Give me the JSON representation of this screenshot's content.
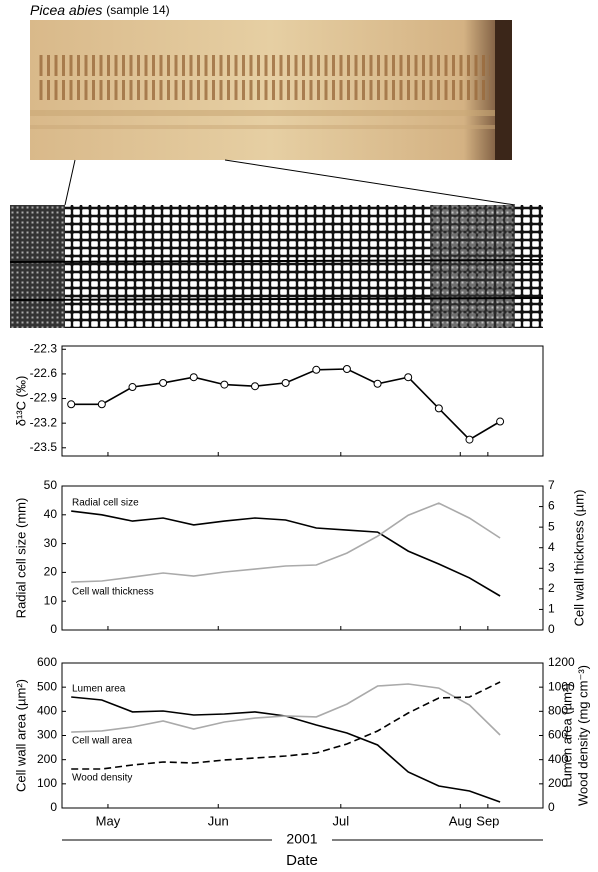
{
  "figure": {
    "species": "Picea abies",
    "sample": "(sample 14)",
    "year": "2001",
    "xlabel": "Date"
  },
  "chart_data": [
    {
      "type": "line",
      "ylabel": "δ¹³C (‰)",
      "marker": "circle",
      "x": [
        1,
        2,
        3,
        4,
        5,
        6,
        7,
        8,
        9,
        10,
        11,
        12,
        13,
        14,
        15
      ],
      "xlim": [
        0.7,
        16.4
      ],
      "ylim": [
        -23.6,
        -22.26
      ],
      "yticks": [
        -22.3,
        -22.6,
        -22.9,
        -23.2,
        -23.5
      ],
      "series": [
        {
          "name": null,
          "color": "#000000",
          "values": [
            -22.97,
            -22.97,
            -22.76,
            -22.71,
            -22.64,
            -22.73,
            -22.75,
            -22.71,
            -22.55,
            -22.54,
            -22.72,
            -22.64,
            -23.02,
            -23.4,
            -23.18
          ]
        }
      ]
    },
    {
      "type": "line",
      "ylabel": "Radial cell size (mm)",
      "y2label": "Cell wall thickness (µm)",
      "x": [
        1,
        2,
        3,
        4,
        5,
        6,
        7,
        8,
        9,
        10,
        11,
        12,
        13,
        14,
        15
      ],
      "xlim": [
        0.7,
        16.4
      ],
      "ylim": [
        0,
        50
      ],
      "yticks": [
        0,
        10,
        20,
        30,
        40,
        50
      ],
      "y2lim": [
        0,
        7
      ],
      "y2ticks": [
        0,
        1,
        2,
        3,
        4,
        5,
        6,
        7
      ],
      "series": [
        {
          "name": "Radial cell size",
          "color": "#000000",
          "values": [
            41.3,
            40,
            37.8,
            38.9,
            36.5,
            37.8,
            38.9,
            38.2,
            35.4,
            34.7,
            34,
            27.4,
            22.9,
            18.1,
            11.8
          ]
        },
        {
          "name": "Cell wall thickness",
          "color": "#aaaaaa",
          "axis": "y2",
          "values": [
            2.33,
            2.38,
            2.57,
            2.77,
            2.62,
            2.82,
            2.96,
            3.11,
            3.16,
            3.74,
            4.56,
            5.58,
            6.17,
            5.44,
            4.47
          ]
        }
      ]
    },
    {
      "type": "line",
      "ylabel": "Cell wall area (µm²)",
      "y2label": [
        "Lumen area (µm²)",
        "Wood density (mg cm⁻³)"
      ],
      "x": [
        1,
        2,
        3,
        4,
        5,
        6,
        7,
        8,
        9,
        10,
        11,
        12,
        13,
        14,
        15
      ],
      "xlim": [
        0.7,
        16.4
      ],
      "xticks": [
        {
          "value": 2.2,
          "label": "May"
        },
        {
          "value": 5.8,
          "label": "Jun"
        },
        {
          "value": 9.8,
          "label": "Jul"
        },
        {
          "value": 13.7,
          "label": "Aug"
        },
        {
          "value": 14.6,
          "label": "Sep"
        }
      ],
      "ylim": [
        0,
        600
      ],
      "yticks": [
        0,
        100,
        200,
        300,
        400,
        500,
        600
      ],
      "y2lim": [
        0,
        1200
      ],
      "y2ticks": [
        0,
        200,
        400,
        600,
        800,
        1000,
        1200
      ],
      "series": [
        {
          "name": "Lumen area",
          "color": "#000000",
          "axis": "y2",
          "values": [
            919,
            894,
            795,
            803,
            770,
            778,
            795,
            761,
            687,
            621,
            521,
            298,
            182,
            141,
            50
          ]
        },
        {
          "name": "Cell wall area",
          "color": "#aaaaaa",
          "values": [
            314,
            319,
            335,
            360,
            327,
            356,
            372,
            381,
            377,
            430,
            505,
            513,
            496,
            426,
            302
          ]
        },
        {
          "name": "Wood density",
          "color": "#000000",
          "axis": "y2",
          "style": "dashed",
          "values": [
            323,
            323,
            356,
            381,
            372,
            397,
            414,
            430,
            455,
            530,
            637,
            786,
            910,
            919,
            1043
          ]
        }
      ]
    }
  ]
}
